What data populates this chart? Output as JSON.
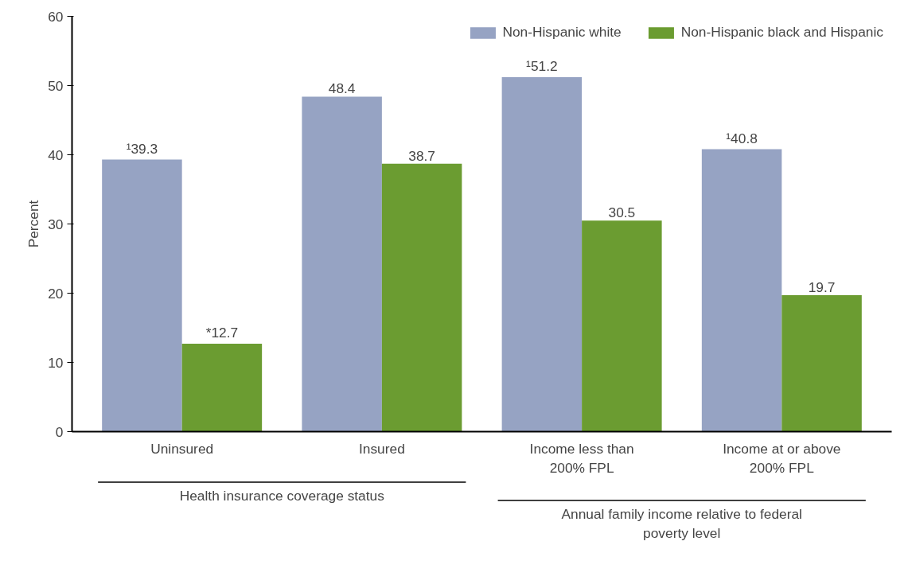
{
  "chart_data": {
    "type": "bar",
    "ylabel": "Percent",
    "categories": [
      "Uninsured",
      "Insured",
      "Income less than\n200% FPL",
      "Income at or above\n200% FPL"
    ],
    "series": [
      {
        "name": "Non-Hispanic white",
        "color": "#96a3c3",
        "values": [
          39.3,
          48.4,
          51.2,
          40.8
        ],
        "value_labels": [
          "¹39.3",
          "48.4",
          "¹51.2",
          "¹40.8"
        ]
      },
      {
        "name": "Non-Hispanic black and Hispanic",
        "color": "#6b9c31",
        "values": [
          12.7,
          38.7,
          30.5,
          19.7
        ],
        "value_labels": [
          "*12.7",
          "38.7",
          "30.5",
          "19.7"
        ]
      }
    ],
    "ylim": [
      0,
      60
    ],
    "yticks": [
      0,
      10,
      20,
      30,
      40,
      50,
      60
    ],
    "grid": false,
    "legend": "top right",
    "annotations": [
      "Health insurance coverage status",
      "Annual family income relative to federal\npoverty level"
    ]
  }
}
